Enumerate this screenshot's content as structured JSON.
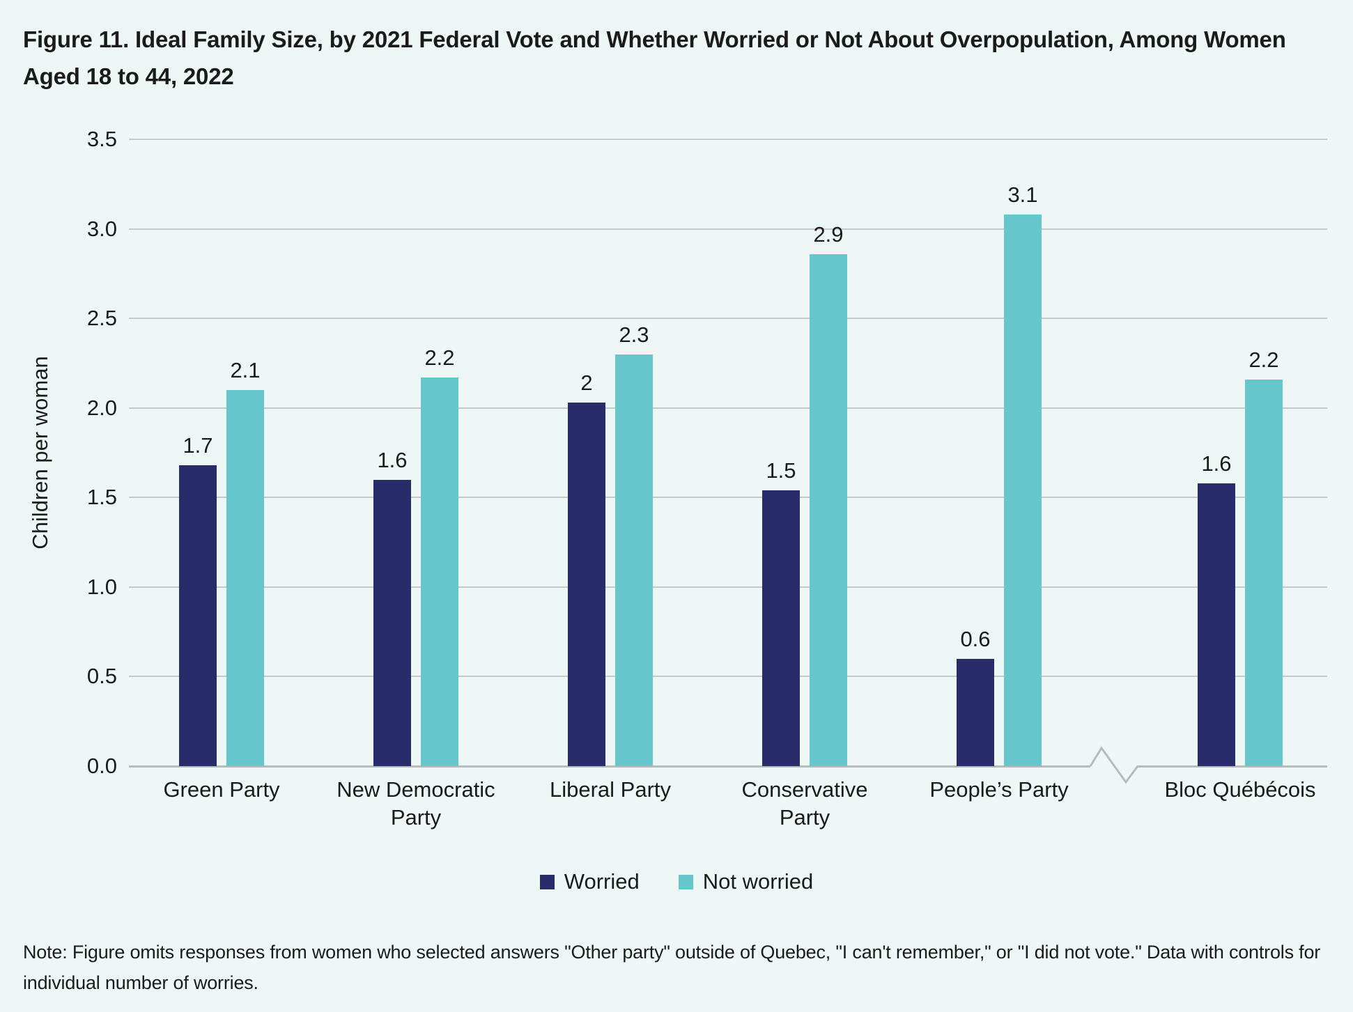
{
  "figure": {
    "title": "Figure 11. Ideal Family Size, by 2021 Federal Vote and Whether Worried or Not About Overpopulation, Among Women Aged 18 to 44, 2022",
    "note": "Note: Figure omits responses from women who selected answers \"Other party\" outside of Quebec, \"I can't remember,\" or \"I did not vote.\" Data with controls for individual number of worries."
  },
  "chart_data": {
    "type": "bar",
    "categories": [
      "Green Party",
      "New Democratic Party",
      "Liberal Party",
      "Conservative Party",
      "People’s Party",
      "Bloc Québécois"
    ],
    "series": [
      {
        "name": "Worried",
        "values": [
          1.7,
          1.6,
          2,
          1.5,
          0.6,
          1.6
        ],
        "labels": [
          "1.7",
          "1.6",
          "2",
          "1.5",
          "0.6",
          "1.6"
        ],
        "bar_heights": [
          1.68,
          1.6,
          2.03,
          1.54,
          0.6,
          1.58
        ],
        "color": "#282c68"
      },
      {
        "name": "Not worried",
        "values": [
          2.1,
          2.2,
          2.3,
          2.9,
          3.1,
          2.2
        ],
        "labels": [
          "2.1",
          "2.2",
          "2.3",
          "2.9",
          "3.1",
          "2.2"
        ],
        "bar_heights": [
          2.1,
          2.17,
          2.3,
          2.86,
          3.08,
          2.16
        ],
        "color": "#67c6cb"
      }
    ],
    "xlabel": "",
    "ylabel": "Children per woman",
    "ylim": [
      0,
      3.5
    ],
    "yticks": [
      "0.0",
      "0.5",
      "1.0",
      "1.5",
      "2.0",
      "2.5",
      "3.0",
      "3.5"
    ],
    "grid": true,
    "legend_position": "bottom",
    "axis_break_after": "People’s Party"
  },
  "colors": {
    "background": "#edf7f6",
    "gridline": "#c5c9c9",
    "baseline": "#b7bbbb",
    "text": "#1b1b1b",
    "worried": "#282c68",
    "not_worried": "#67c6cb"
  }
}
